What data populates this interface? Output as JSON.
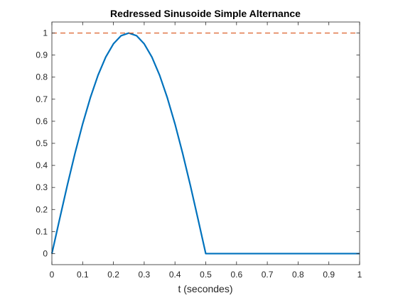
{
  "chart_data": {
    "type": "line",
    "title": "Redressed Sinusoide Simple Alternance",
    "xlabel": "t (secondes)",
    "ylabel": "",
    "xlim": [
      0,
      1
    ],
    "ylim": [
      -0.05,
      1.05
    ],
    "xticks": [
      0,
      0.1,
      0.2,
      0.3,
      0.4,
      0.5,
      0.6,
      0.7,
      0.8,
      0.9,
      1
    ],
    "xtick_labels": [
      "0",
      "0.1",
      "0.2",
      "0.3",
      "0.4",
      "0.5",
      "0.6",
      "0.7",
      "0.8",
      "0.9",
      "1"
    ],
    "yticks": [
      0,
      0.1,
      0.2,
      0.3,
      0.4,
      0.5,
      0.6,
      0.7,
      0.8,
      0.9,
      1
    ],
    "ytick_labels": [
      "0",
      "0.1",
      "0.2",
      "0.3",
      "0.4",
      "0.5",
      "0.6",
      "0.7",
      "0.8",
      "0.9",
      "1"
    ],
    "grid": false,
    "legend": "none",
    "series": [
      {
        "x": [
          0,
          0.025,
          0.05,
          0.075,
          0.1,
          0.125,
          0.15,
          0.175,
          0.2,
          0.225,
          0.25,
          0.275,
          0.3,
          0.325,
          0.35,
          0.375,
          0.4,
          0.425,
          0.45,
          0.475,
          0.5,
          0.55,
          0.6,
          0.65,
          0.7,
          0.75,
          0.8,
          0.85,
          0.9,
          0.95,
          1
        ],
        "y": [
          0,
          0.156,
          0.309,
          0.454,
          0.588,
          0.707,
          0.809,
          0.891,
          0.951,
          0.988,
          1,
          0.988,
          0.951,
          0.891,
          0.809,
          0.707,
          0.588,
          0.454,
          0.309,
          0.156,
          0,
          0,
          0,
          0,
          0,
          0,
          0,
          0,
          0,
          0,
          0
        ],
        "color": "#0072BD",
        "style": "solid"
      },
      {
        "x": [
          0,
          1
        ],
        "y": [
          1,
          1
        ],
        "color": "#D95319",
        "style": "dashed"
      }
    ]
  }
}
